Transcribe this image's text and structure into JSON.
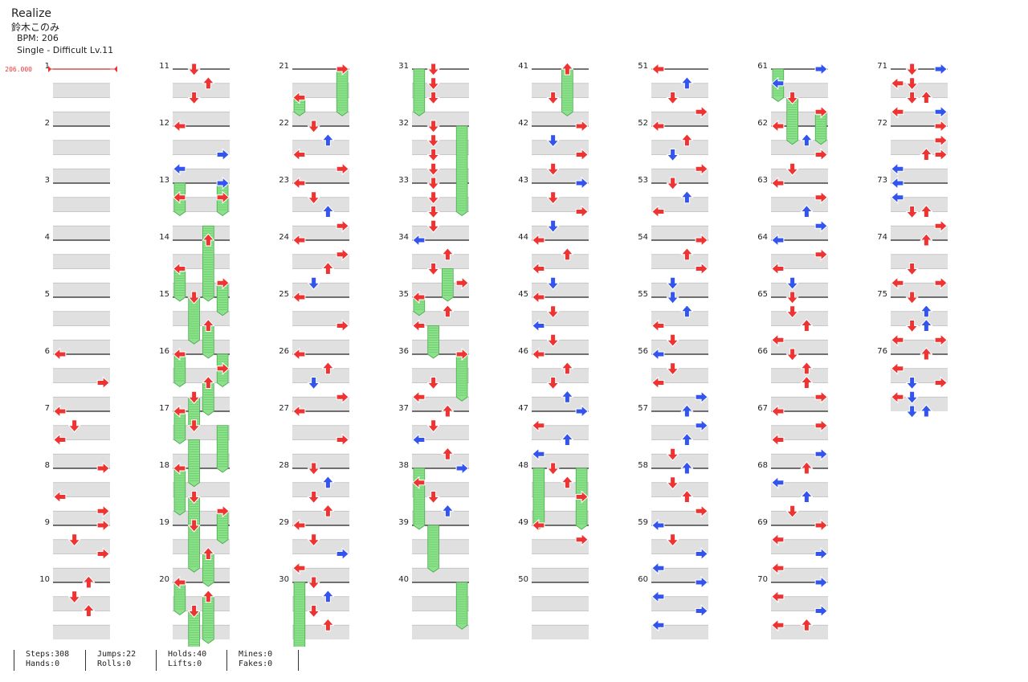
{
  "song": {
    "title": "Realize",
    "artist": "鈴木このみ",
    "bpm_label": "BPM: 206",
    "difficulty_label": "Single - Difficult Lv.11"
  },
  "bpm_marker": "206.000",
  "measures": 76,
  "colors": {
    "red": "#ee3333",
    "blue": "#3355ee",
    "hold": "#8ee08e",
    "stripe": "#e0e0e0"
  },
  "stats": [
    {
      "top": "Steps:308",
      "bottom": "Hands:0"
    },
    {
      "top": "Jumps:22",
      "bottom": "Rolls:0"
    },
    {
      "top": "Holds:40",
      "bottom": "Lifts:0"
    },
    {
      "top": "Mines:0",
      "bottom": "Fakes:0"
    }
  ],
  "notes": [
    [
      6,
      0,
      0
    ],
    [
      6.5,
      3,
      0
    ],
    [
      7,
      0,
      0
    ],
    [
      7.25,
      1,
      0
    ],
    [
      7.5,
      0,
      0
    ],
    [
      8,
      3,
      0
    ],
    [
      8.5,
      0,
      0
    ],
    [
      8.75,
      3,
      0
    ],
    [
      9,
      3,
      0
    ],
    [
      9.25,
      1,
      0
    ],
    [
      9.5,
      3,
      0
    ],
    [
      10,
      2,
      0
    ],
    [
      10.25,
      1,
      0
    ],
    [
      10.5,
      2,
      0
    ],
    [
      11,
      1,
      0
    ],
    [
      11.25,
      2,
      0
    ],
    [
      11.5,
      1,
      0
    ],
    [
      12,
      0,
      0
    ],
    [
      12.5,
      3,
      1
    ],
    [
      12.75,
      0,
      1
    ],
    [
      13,
      3,
      1
    ],
    [
      13.25,
      0,
      0
    ],
    [
      13.25,
      3,
      0
    ],
    [
      14,
      2,
      0
    ],
    [
      14.5,
      0,
      0
    ],
    [
      14.75,
      3,
      0
    ],
    [
      15,
      1,
      0
    ],
    [
      15.5,
      2,
      0
    ],
    [
      16,
      0,
      0
    ],
    [
      16.25,
      3,
      0
    ],
    [
      16.5,
      2,
      0
    ],
    [
      16.75,
      1,
      0
    ],
    [
      17,
      0,
      0
    ],
    [
      17.25,
      1,
      0
    ],
    [
      18,
      0,
      0
    ],
    [
      18.5,
      1,
      0
    ],
    [
      18.75,
      3,
      0
    ],
    [
      19,
      1,
      0
    ],
    [
      19.5,
      2,
      0
    ],
    [
      20,
      0,
      0
    ],
    [
      20.25,
      2,
      0
    ],
    [
      20.5,
      1,
      0
    ],
    [
      21,
      3,
      0
    ],
    [
      21.5,
      0,
      0
    ],
    [
      22,
      1,
      0
    ],
    [
      22.25,
      2,
      1
    ],
    [
      22.5,
      0,
      0
    ],
    [
      22.75,
      3,
      0
    ],
    [
      23,
      0,
      0
    ],
    [
      23.25,
      1,
      0
    ],
    [
      23.5,
      2,
      1
    ],
    [
      23.75,
      3,
      0
    ],
    [
      24,
      0,
      0
    ],
    [
      24.25,
      3,
      0
    ],
    [
      24.5,
      2,
      0
    ],
    [
      24.75,
      1,
      1
    ],
    [
      25,
      0,
      0
    ],
    [
      25.5,
      3,
      0
    ],
    [
      26,
      0,
      0
    ],
    [
      26.25,
      2,
      0
    ],
    [
      26.5,
      1,
      1
    ],
    [
      26.75,
      3,
      0
    ],
    [
      27,
      0,
      0
    ],
    [
      27.5,
      3,
      0
    ],
    [
      28,
      1,
      0
    ],
    [
      28.25,
      2,
      1
    ],
    [
      28.5,
      1,
      0
    ],
    [
      28.75,
      2,
      0
    ],
    [
      29,
      0,
      0
    ],
    [
      29.25,
      1,
      0
    ],
    [
      29.5,
      3,
      1
    ],
    [
      29.75,
      0,
      0
    ],
    [
      30,
      1,
      0
    ],
    [
      30.25,
      2,
      1
    ],
    [
      30.5,
      1,
      0
    ],
    [
      30.75,
      2,
      0
    ],
    [
      31,
      1,
      0
    ],
    [
      31.25,
      1,
      0
    ],
    [
      31.5,
      1,
      0
    ],
    [
      32,
      1,
      0
    ],
    [
      32.25,
      1,
      0
    ],
    [
      32.5,
      1,
      0
    ],
    [
      32.75,
      1,
      0
    ],
    [
      33,
      1,
      0
    ],
    [
      33.25,
      1,
      0
    ],
    [
      33.5,
      1,
      0
    ],
    [
      33.75,
      1,
      0
    ],
    [
      34,
      0,
      1
    ],
    [
      34.25,
      2,
      0
    ],
    [
      34.5,
      1,
      0
    ],
    [
      34.75,
      3,
      0
    ],
    [
      35,
      0,
      0
    ],
    [
      35.25,
      2,
      0
    ],
    [
      35.5,
      0,
      0
    ],
    [
      36,
      3,
      0
    ],
    [
      36.5,
      1,
      0
    ],
    [
      36.75,
      0,
      0
    ],
    [
      37,
      2,
      0
    ],
    [
      37.25,
      1,
      0
    ],
    [
      37.5,
      0,
      1
    ],
    [
      37.75,
      2,
      0
    ],
    [
      38,
      3,
      1
    ],
    [
      38.25,
      0,
      0
    ],
    [
      38.5,
      1,
      0
    ],
    [
      38.75,
      2,
      1
    ],
    [
      41,
      2,
      0
    ],
    [
      41.5,
      1,
      0
    ],
    [
      42,
      3,
      0
    ],
    [
      42.25,
      1,
      1
    ],
    [
      42.5,
      3,
      0
    ],
    [
      42.75,
      1,
      0
    ],
    [
      43,
      3,
      1
    ],
    [
      43.25,
      1,
      0
    ],
    [
      43.5,
      3,
      0
    ],
    [
      43.75,
      1,
      1
    ],
    [
      44,
      0,
      0
    ],
    [
      44.25,
      2,
      0
    ],
    [
      44.5,
      0,
      0
    ],
    [
      44.75,
      1,
      1
    ],
    [
      45,
      0,
      0
    ],
    [
      45.25,
      1,
      0
    ],
    [
      45.5,
      0,
      1
    ],
    [
      45.75,
      1,
      0
    ],
    [
      46,
      0,
      0
    ],
    [
      46.25,
      2,
      0
    ],
    [
      46.5,
      1,
      0
    ],
    [
      46.75,
      2,
      1
    ],
    [
      47,
      3,
      1
    ],
    [
      47.25,
      0,
      0
    ],
    [
      47.5,
      2,
      1
    ],
    [
      47.75,
      0,
      1
    ],
    [
      48,
      1,
      0
    ],
    [
      48.25,
      2,
      0
    ],
    [
      48.5,
      3,
      0
    ],
    [
      49,
      0,
      0
    ],
    [
      49.25,
      3,
      0
    ],
    [
      51,
      0,
      0
    ],
    [
      51.25,
      2,
      1
    ],
    [
      51.5,
      1,
      0
    ],
    [
      51.75,
      3,
      0
    ],
    [
      52,
      0,
      0
    ],
    [
      52.25,
      2,
      0
    ],
    [
      52.5,
      1,
      1
    ],
    [
      52.75,
      3,
      0
    ],
    [
      53,
      1,
      0
    ],
    [
      53.25,
      2,
      1
    ],
    [
      53.5,
      0,
      0
    ],
    [
      54,
      3,
      0
    ],
    [
      54.25,
      2,
      0
    ],
    [
      54.5,
      3,
      0
    ],
    [
      54.75,
      1,
      1
    ],
    [
      55,
      1,
      1
    ],
    [
      55.25,
      2,
      1
    ],
    [
      55.5,
      0,
      0
    ],
    [
      55.75,
      1,
      0
    ],
    [
      56,
      0,
      1
    ],
    [
      56.25,
      1,
      0
    ],
    [
      56.5,
      0,
      0
    ],
    [
      56.75,
      3,
      1
    ],
    [
      57,
      2,
      1
    ],
    [
      57.25,
      3,
      1
    ],
    [
      57.5,
      2,
      1
    ],
    [
      57.75,
      1,
      0
    ],
    [
      58,
      2,
      1
    ],
    [
      58.25,
      1,
      0
    ],
    [
      58.5,
      2,
      0
    ],
    [
      58.75,
      3,
      0
    ],
    [
      59,
      0,
      1
    ],
    [
      59.25,
      1,
      0
    ],
    [
      59.5,
      3,
      1
    ],
    [
      59.75,
      0,
      1
    ],
    [
      60,
      3,
      1
    ],
    [
      60.25,
      0,
      1
    ],
    [
      60.5,
      3,
      1
    ],
    [
      60.75,
      0,
      1
    ],
    [
      61,
      3,
      1
    ],
    [
      61.25,
      0,
      1
    ],
    [
      61.5,
      1,
      0
    ],
    [
      61.75,
      3,
      0
    ],
    [
      62,
      0,
      0
    ],
    [
      62.25,
      2,
      1
    ],
    [
      62.5,
      3,
      0
    ],
    [
      62.75,
      1,
      0
    ],
    [
      63,
      0,
      0
    ],
    [
      63.25,
      3,
      0
    ],
    [
      63.5,
      2,
      1
    ],
    [
      63.75,
      3,
      1
    ],
    [
      64,
      0,
      1
    ],
    [
      64.25,
      3,
      0
    ],
    [
      64.5,
      0,
      0
    ],
    [
      64.75,
      1,
      1
    ],
    [
      65,
      1,
      0
    ],
    [
      65.25,
      1,
      0
    ],
    [
      65.5,
      2,
      0
    ],
    [
      65.75,
      0,
      0
    ],
    [
      66,
      1,
      0
    ],
    [
      66.25,
      2,
      0
    ],
    [
      66.5,
      2,
      0
    ],
    [
      66.75,
      3,
      0
    ],
    [
      67,
      0,
      0
    ],
    [
      67.25,
      3,
      0
    ],
    [
      67.5,
      0,
      0
    ],
    [
      67.75,
      3,
      1
    ],
    [
      68,
      2,
      0
    ],
    [
      68.25,
      0,
      1
    ],
    [
      68.5,
      2,
      1
    ],
    [
      68.75,
      1,
      0
    ],
    [
      69,
      3,
      0
    ],
    [
      69.25,
      0,
      0
    ],
    [
      69.5,
      3,
      1
    ],
    [
      69.75,
      0,
      0
    ],
    [
      70,
      3,
      1
    ],
    [
      70.25,
      0,
      1
    ],
    [
      70.5,
      3,
      1
    ],
    [
      70.75,
      0,
      0
    ],
    [
      70.25,
      0,
      0
    ],
    [
      70.75,
      2,
      0
    ],
    [
      71,
      1,
      0
    ],
    [
      71.25,
      0,
      0
    ],
    [
      71.75,
      3,
      1
    ],
    [
      71,
      3,
      1
    ],
    [
      71.25,
      1,
      0
    ],
    [
      71.5,
      1,
      0
    ],
    [
      71.5,
      2,
      0
    ],
    [
      71.75,
      0,
      0
    ],
    [
      72,
      3,
      0
    ],
    [
      72.25,
      3,
      0
    ],
    [
      72.5,
      2,
      0
    ],
    [
      72.5,
      3,
      0
    ],
    [
      72.75,
      0,
      1
    ],
    [
      73,
      0,
      1
    ],
    [
      73.25,
      0,
      1
    ],
    [
      73.5,
      1,
      0
    ],
    [
      73.5,
      2,
      0
    ],
    [
      73.75,
      3,
      0
    ],
    [
      74,
      2,
      0
    ],
    [
      74.5,
      1,
      0
    ],
    [
      74.75,
      0,
      0
    ],
    [
      74.75,
      3,
      0
    ],
    [
      75,
      1,
      0
    ],
    [
      75.25,
      2,
      1
    ],
    [
      75.5,
      1,
      0
    ],
    [
      75.5,
      2,
      1
    ],
    [
      75.75,
      0,
      0
    ],
    [
      75.75,
      3,
      0
    ],
    [
      76,
      2,
      0
    ],
    [
      76.25,
      0,
      0
    ],
    [
      76.5,
      3,
      0
    ],
    [
      76.5,
      1,
      1
    ],
    [
      76.75,
      0,
      0
    ],
    [
      76.75,
      1,
      1
    ],
    [
      77,
      1,
      1
    ],
    [
      77,
      2,
      1
    ]
  ],
  "holds": [
    [
      13,
      0,
      0.5
    ],
    [
      13,
      3,
      0.5
    ],
    [
      13.75,
      2,
      1.25
    ],
    [
      14.5,
      0,
      0.5
    ],
    [
      14.75,
      3,
      0.5
    ],
    [
      15,
      1,
      0.75
    ],
    [
      15.5,
      2,
      0.5
    ],
    [
      16,
      0,
      0.5
    ],
    [
      16,
      3,
      0.5
    ],
    [
      16.5,
      2,
      0.5
    ],
    [
      16.75,
      1,
      0.5
    ],
    [
      17,
      0,
      0.5
    ],
    [
      17.25,
      3,
      0.75
    ],
    [
      17.5,
      1,
      0.75
    ],
    [
      18,
      0,
      0.75
    ],
    [
      18.5,
      1,
      0.5
    ],
    [
      18.75,
      3,
      0.5
    ],
    [
      19,
      1,
      0.75
    ],
    [
      19.5,
      2,
      0.5
    ],
    [
      20,
      0,
      0.5
    ],
    [
      20.25,
      2,
      0.75
    ],
    [
      20.5,
      1,
      0.75
    ],
    [
      21,
      3,
      0.75
    ],
    [
      21.5,
      0,
      0.25
    ],
    [
      30,
      0,
      1.25
    ],
    [
      31,
      0,
      0.75
    ],
    [
      32,
      3,
      1.5
    ],
    [
      34.5,
      2,
      0.5
    ],
    [
      35,
      0,
      0.25
    ],
    [
      35.5,
      1,
      0.5
    ],
    [
      36,
      3,
      0.75
    ],
    [
      38,
      0,
      1.0
    ],
    [
      39,
      1,
      0.75
    ],
    [
      40,
      3,
      0.75
    ],
    [
      41,
      2,
      0.75
    ],
    [
      48,
      0,
      1.0
    ],
    [
      48,
      3,
      1.0
    ],
    [
      61,
      0,
      0.5
    ],
    [
      61.5,
      1,
      0.75
    ],
    [
      61.75,
      3,
      0.5
    ]
  ]
}
